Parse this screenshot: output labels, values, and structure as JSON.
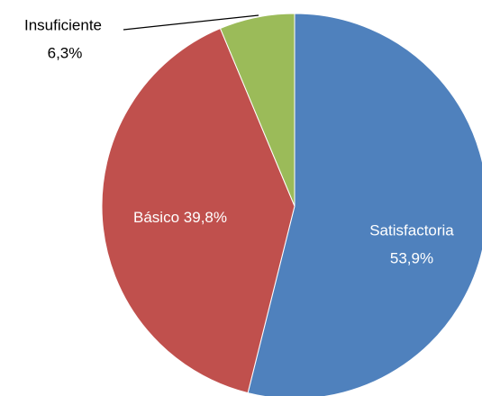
{
  "chart_data": {
    "type": "pie",
    "categories": [
      "Satisfactoria",
      "Básico",
      "Insuficiente"
    ],
    "values": [
      53.9,
      39.8,
      6.3
    ],
    "value_labels": [
      "53,9%",
      "39,8%",
      "6,3%"
    ],
    "colors": [
      "#4f81bd",
      "#c0504d",
      "#9bbb59"
    ]
  }
}
